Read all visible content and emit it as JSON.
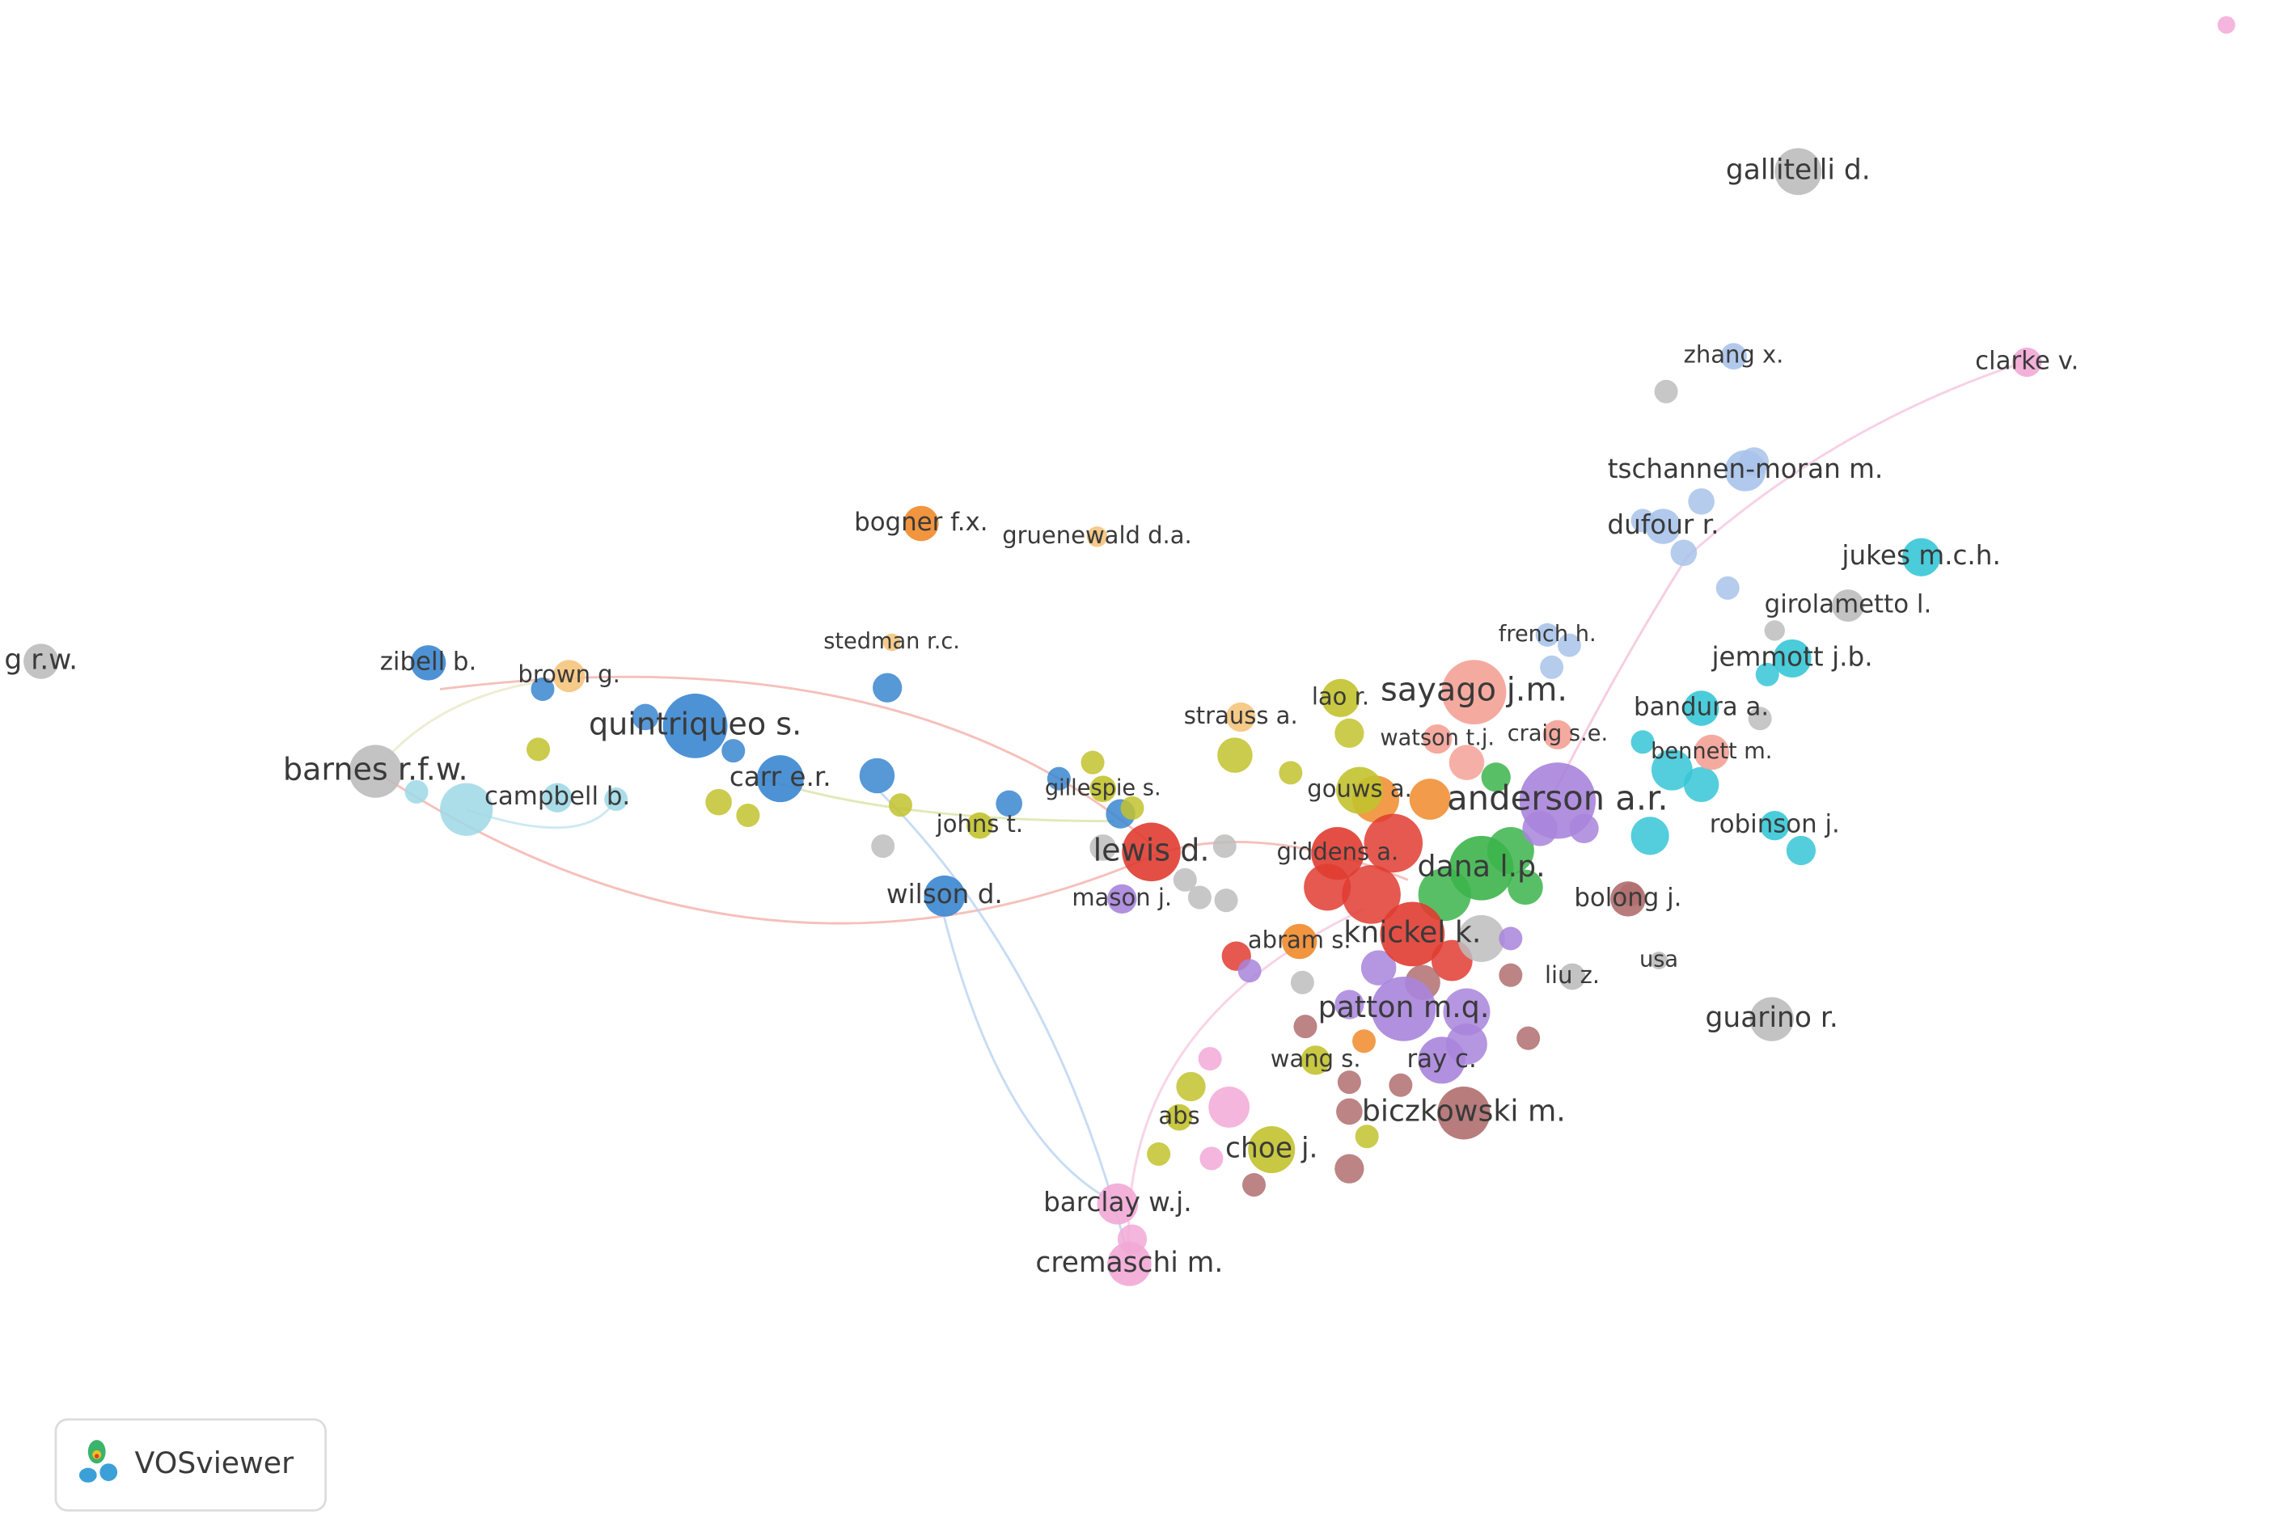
{
  "logo": "VOSviewer",
  "nodes": [
    {
      "label": "gallitelli d."
    },
    {
      "label": "zhang x."
    },
    {
      "label": "clarke v."
    },
    {
      "label": "tschannen-moran m."
    },
    {
      "label": "dufour r."
    },
    {
      "label": "jukes m.c.h."
    },
    {
      "label": "girolametto l."
    },
    {
      "label": "bogner f.x."
    },
    {
      "label": "gruenewald d.a."
    },
    {
      "label": "stedman r.c."
    },
    {
      "label": "french h."
    },
    {
      "label": "jemmott j.b."
    },
    {
      "label": "g r.w."
    },
    {
      "label": "zibell b."
    },
    {
      "label": "brown g."
    },
    {
      "label": "lao r."
    },
    {
      "label": "sayago j.m."
    },
    {
      "label": "bandura a."
    },
    {
      "label": "strauss a."
    },
    {
      "label": "quintriqueo s."
    },
    {
      "label": "watson t.j."
    },
    {
      "label": "craig s.e."
    },
    {
      "label": "bennett m."
    },
    {
      "label": "barnes r.f.w."
    },
    {
      "label": "carr e.r."
    },
    {
      "label": "gillespie s."
    },
    {
      "label": "gouws a."
    },
    {
      "label": "campbell b."
    },
    {
      "label": "anderson a.r."
    },
    {
      "label": "johns t."
    },
    {
      "label": "robinson j."
    },
    {
      "label": "lewis d."
    },
    {
      "label": "giddens a."
    },
    {
      "label": "dana l.p."
    },
    {
      "label": "wilson d."
    },
    {
      "label": "mason j."
    },
    {
      "label": "bolong j."
    },
    {
      "label": "abram s."
    },
    {
      "label": "knickel k."
    },
    {
      "label": "usa"
    },
    {
      "label": "liu z."
    },
    {
      "label": "patton m.q."
    },
    {
      "label": "guarino r."
    },
    {
      "label": "wang s."
    },
    {
      "label": "ray c."
    },
    {
      "label": "abs"
    },
    {
      "label": "biczkowski m."
    },
    {
      "label": "choe j."
    },
    {
      "label": "barclay w.j."
    },
    {
      "label": "cremaschi m."
    }
  ]
}
